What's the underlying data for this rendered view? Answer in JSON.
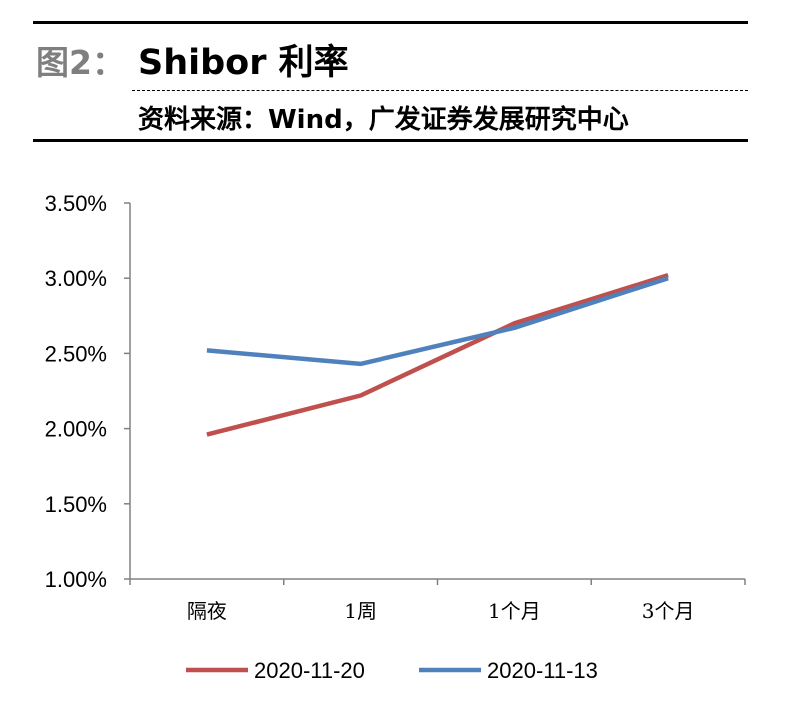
{
  "header": {
    "figure_label": "图2：",
    "title": "Shibor 利率",
    "source": "资料来源：Wind，广发证券发展研究中心"
  },
  "chart_data": {
    "type": "line",
    "categories": [
      "隔夜",
      "1周",
      "1个月",
      "3个月"
    ],
    "series": [
      {
        "name": "2020-11-20",
        "color": "#c0504d",
        "values": [
          1.96,
          2.22,
          2.7,
          3.02
        ]
      },
      {
        "name": "2020-11-13",
        "color": "#4f81bd",
        "values": [
          2.52,
          2.43,
          2.67,
          3.0
        ]
      }
    ],
    "y_unit": "percent",
    "ylim": [
      1.0,
      3.5
    ],
    "yticks": [
      "1.00%",
      "1.50%",
      "2.00%",
      "2.50%",
      "3.00%",
      "3.50%"
    ],
    "grid": false,
    "legend_position": "bottom"
  }
}
